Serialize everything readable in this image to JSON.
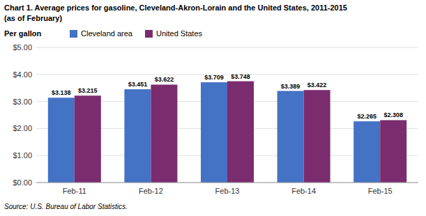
{
  "chart_data": {
    "type": "bar",
    "title": "Chart 1. Average prices for gasoline, Cleveland-Akron-Lorain and the United States, 2011-2015",
    "subtitle": "(as of February)",
    "y_label": "Per gallon",
    "annotations": [
      "Source: U.S. Bureau of Labor Statistics."
    ],
    "categories": [
      "Feb-11",
      "Feb-12",
      "Feb-13",
      "Feb-14",
      "Feb-15"
    ],
    "series": [
      {
        "name": "Cleveland area",
        "color": "#4472C4",
        "values": [
          3.138,
          3.451,
          3.709,
          3.389,
          2.265
        ],
        "value_labels": [
          "$3.138",
          "$3.451",
          "$3.709",
          "$3.389",
          "$2.265"
        ]
      },
      {
        "name": "United States",
        "color": "#7B2C6E",
        "values": [
          3.215,
          3.622,
          3.748,
          3.422,
          2.308
        ],
        "value_labels": [
          "$3.215",
          "$3.622",
          "$3.748",
          "$3.422",
          "$2.308"
        ]
      }
    ],
    "ylim": [
      0,
      5.0
    ],
    "yticks": [
      {
        "value": 0.0,
        "label": "$0.00"
      },
      {
        "value": 1.0,
        "label": "$1.00"
      },
      {
        "value": 2.0,
        "label": "$2.00"
      },
      {
        "value": 3.0,
        "label": "$3.00"
      },
      {
        "value": 4.0,
        "label": "$4.00"
      },
      {
        "value": 5.0,
        "label": "$5.00"
      }
    ],
    "grid": true,
    "legend": "top-left",
    "data_labels": true
  }
}
